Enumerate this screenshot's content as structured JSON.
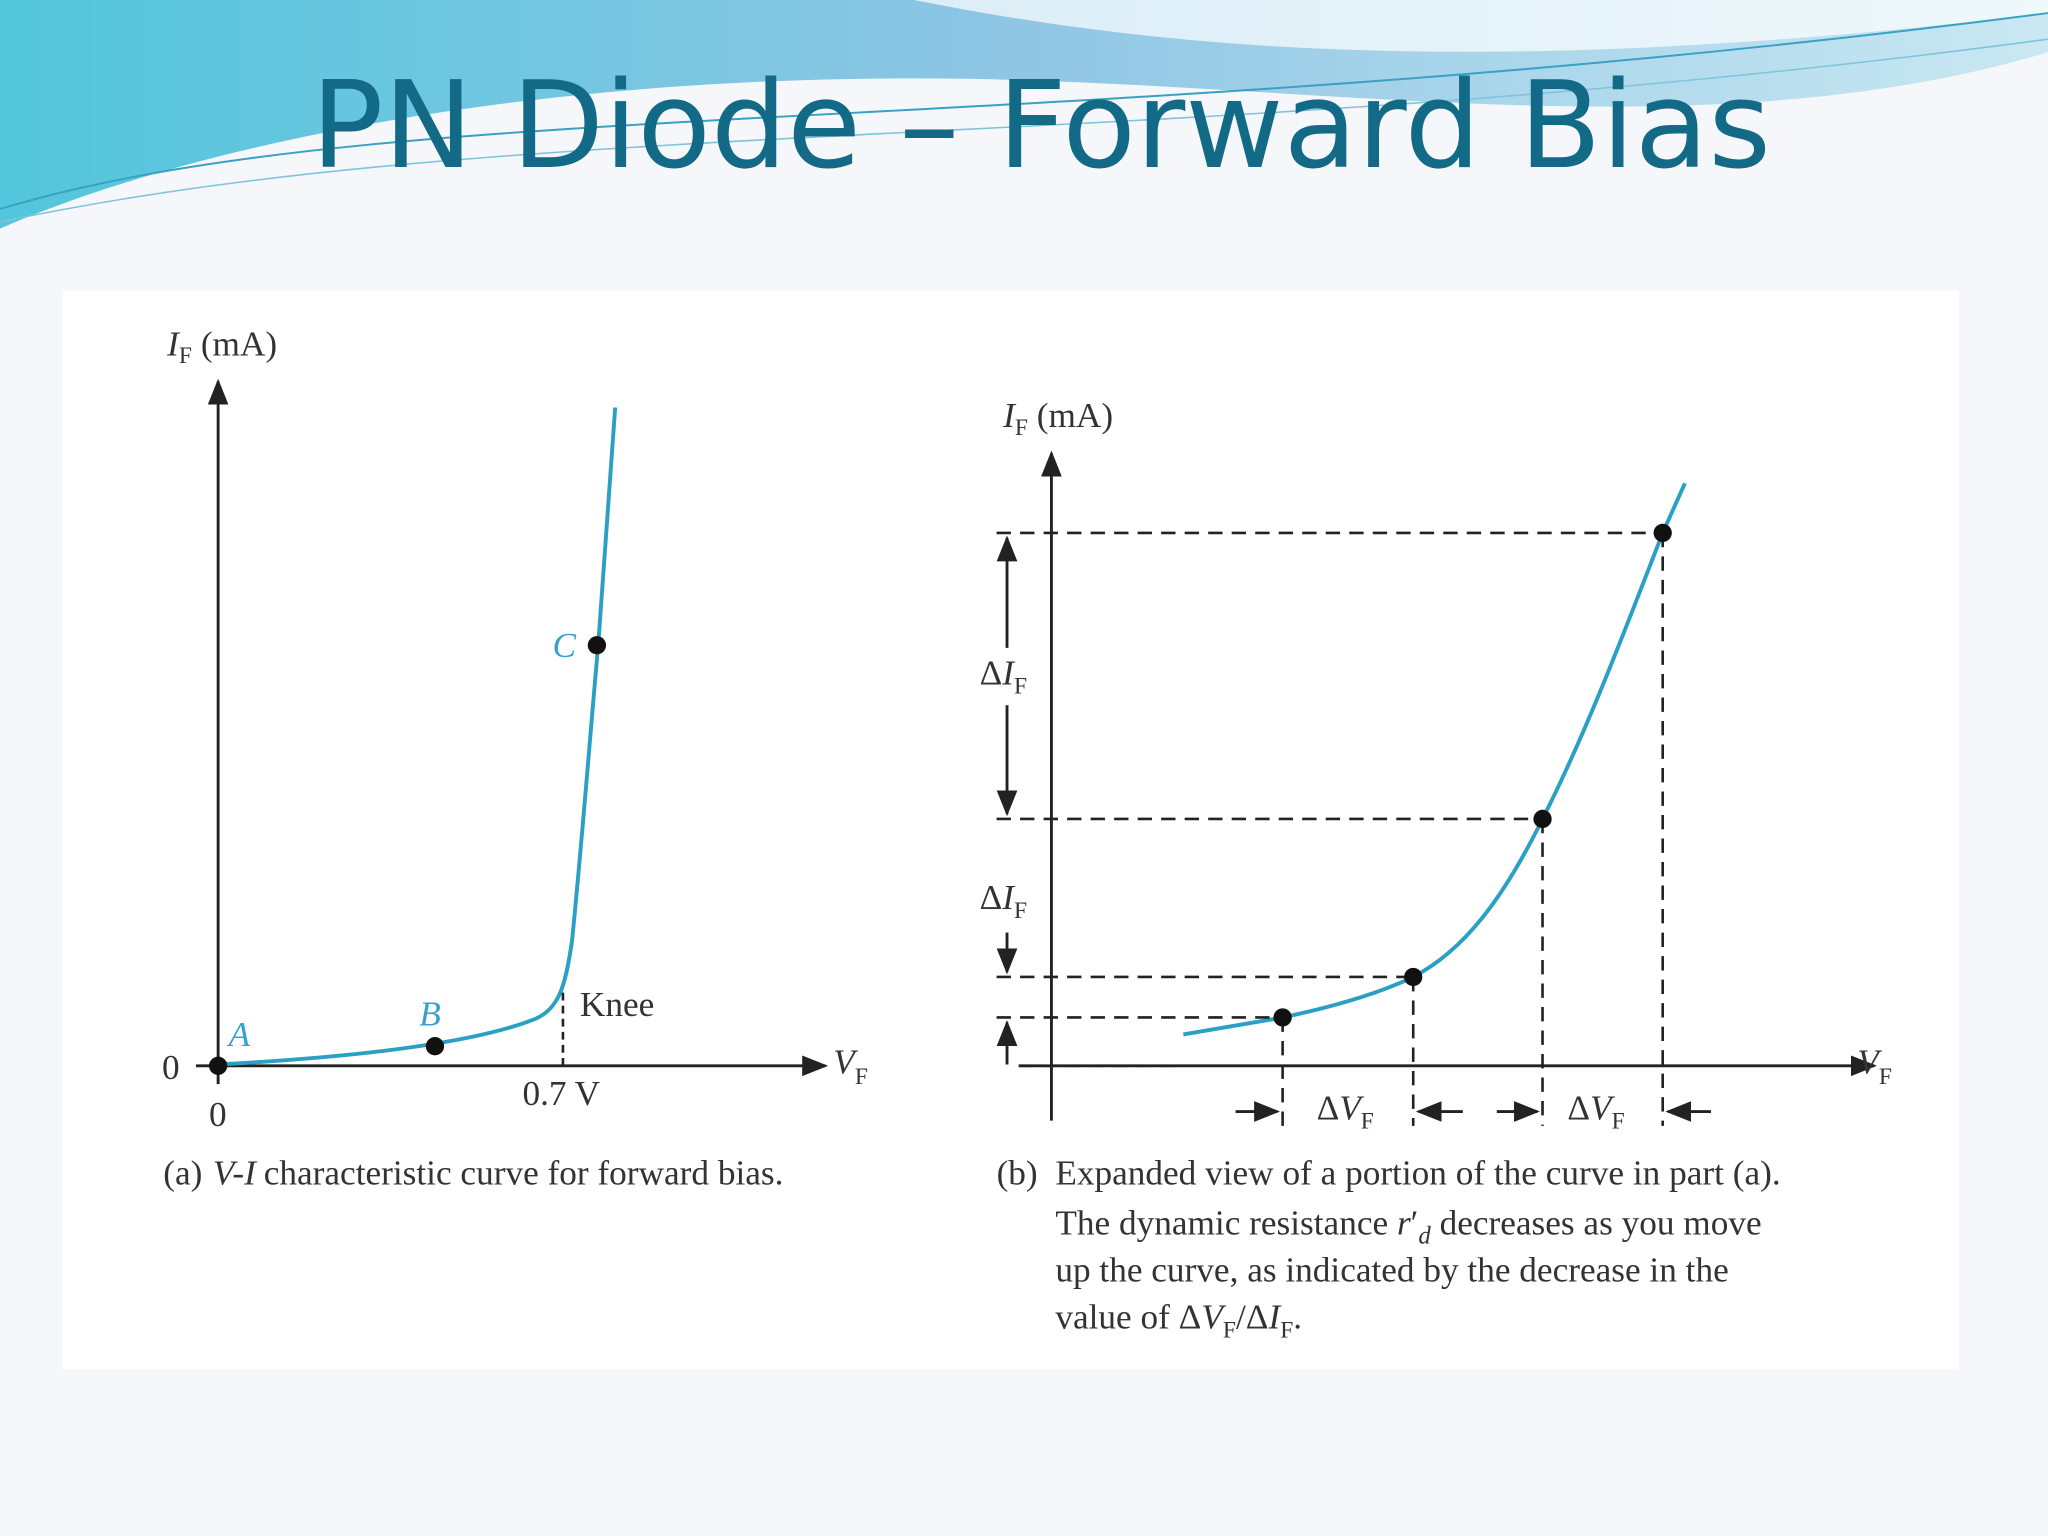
{
  "title": "PN Diode – Forward Bias",
  "figure_a": {
    "y_axis_label": [
      "I",
      "F",
      " (mA)"
    ],
    "x_axis_label": [
      "V",
      "F"
    ],
    "y_origin_label": "0",
    "x_origin_label": "0",
    "point_labels": [
      "A",
      "B",
      "C"
    ],
    "knee_label": "Knee",
    "knee_voltage_label": "0.7 V",
    "caption": [
      "(a)",
      "V-I",
      "characteristic curve for forward bias."
    ]
  },
  "figure_b": {
    "y_axis_label": [
      "I",
      "F",
      " (mA)"
    ],
    "x_axis_label": [
      "V",
      "F"
    ],
    "delta_i_labels": [
      [
        "Δ",
        "I",
        "F"
      ],
      [
        "Δ",
        "I",
        "F"
      ]
    ],
    "delta_v_labels": [
      [
        "Δ",
        "V",
        "F"
      ],
      [
        "Δ",
        "V",
        "F"
      ]
    ],
    "caption": {
      "marker": "(b)",
      "lines": [
        [
          "Expanded view of a portion of the curve in part (a)."
        ],
        [
          "The dynamic resistance ",
          "r",
          "′",
          "d",
          " decreases as you move"
        ],
        [
          "up the curve, as indicated by the decrease in the"
        ],
        [
          "value of ",
          "Δ",
          "V",
          "F",
          "/",
          "Δ",
          "I",
          "F",
          "."
        ]
      ]
    }
  }
}
